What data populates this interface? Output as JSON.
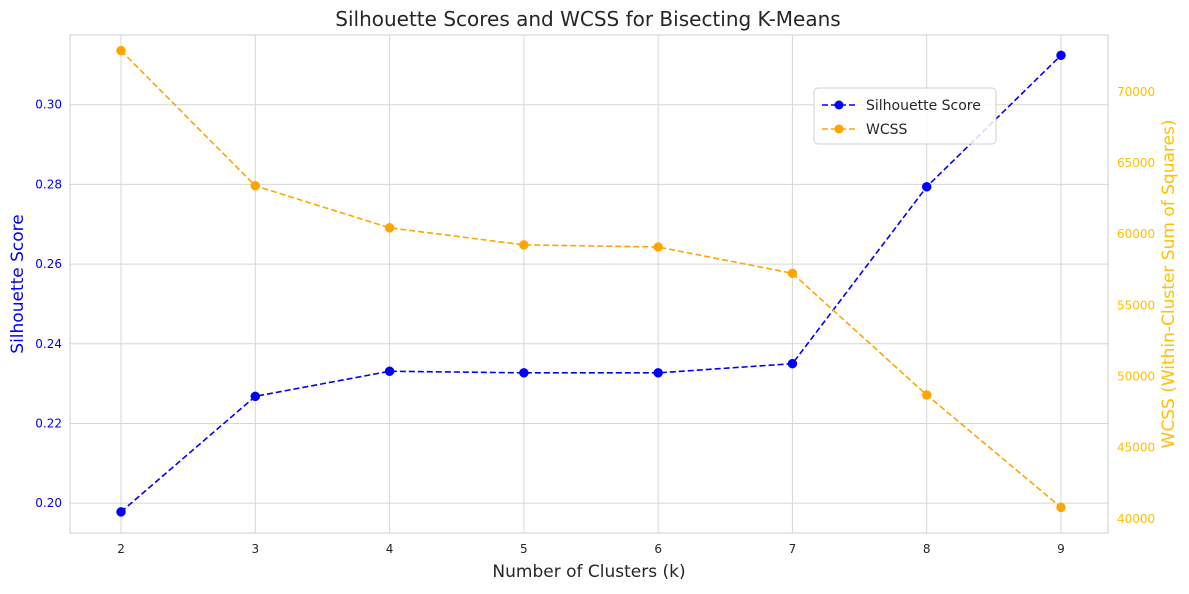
{
  "chart_data": {
    "type": "line",
    "title": "Silhouette Scores and WCSS for Bisecting K-Means",
    "xlabel": "Number of Clusters (k)",
    "ylabel": "Silhouette Score",
    "y2label": "WCSS (Within-Cluster Sum of Squares)",
    "x": [
      2,
      3,
      4,
      5,
      6,
      7,
      8,
      9
    ],
    "xlim": [
      1.62,
      9.35
    ],
    "ylim": [
      0.1925,
      0.3175
    ],
    "y2lim": [
      39000,
      74000
    ],
    "x_ticks": [
      "2",
      "3",
      "4",
      "5",
      "6",
      "7",
      "8",
      "9"
    ],
    "y_ticks": [
      "0.20",
      "0.22",
      "0.24",
      "0.26",
      "0.28",
      "0.30"
    ],
    "y2_ticks": [
      "40000",
      "45000",
      "50000",
      "55000",
      "60000",
      "65000",
      "70000"
    ],
    "grid": true,
    "legend_position": "top-right",
    "series": [
      {
        "name": "Silhouette Score",
        "axis": "left",
        "color": "#0000ff",
        "style": "dashed",
        "marker": "circle",
        "values": [
          0.1978,
          0.2268,
          0.2331,
          0.2327,
          0.2327,
          0.235,
          0.2794,
          0.3124
        ]
      },
      {
        "name": "WCSS",
        "axis": "right",
        "color": "#ffa500",
        "style": "dashed",
        "marker": "circle",
        "values": [
          72900,
          63400,
          60450,
          59250,
          59100,
          57250,
          48700,
          40800
        ]
      }
    ],
    "colors": {
      "left_axis": "#0000ff",
      "right_axis": "#ffc000",
      "grid": "#d6d6d6",
      "spine": "#cfcfcf",
      "title": "#262626"
    }
  }
}
